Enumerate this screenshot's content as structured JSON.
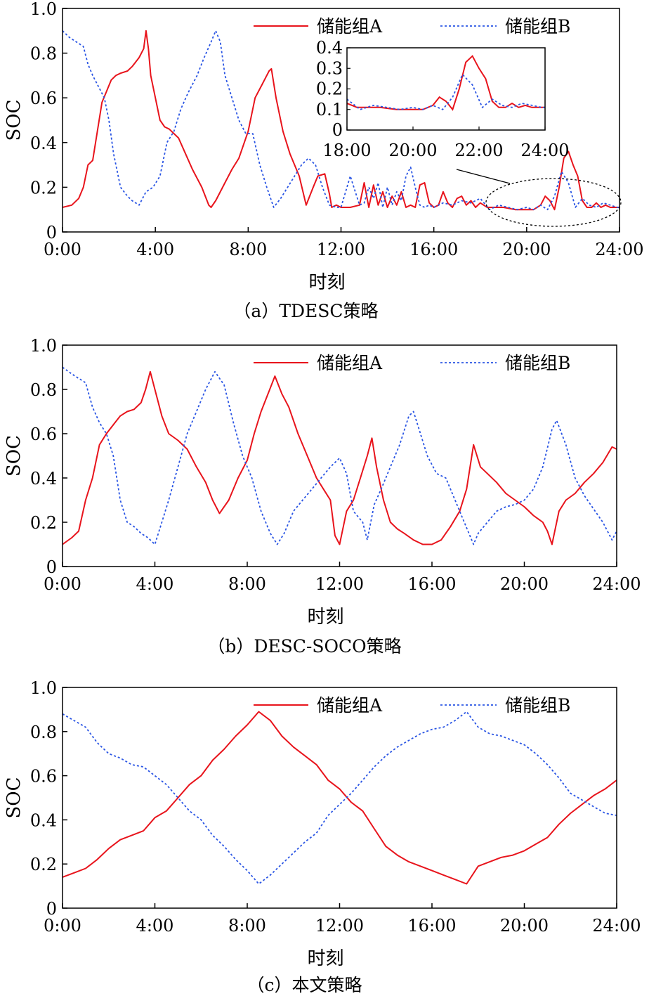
{
  "chart_data": [
    {
      "type": "line",
      "title": "（a）TDESC策略",
      "xlabel": "时刻",
      "ylabel": "SOC",
      "x_ticks": [
        "0:00",
        "4:00",
        "8:00",
        "12:00",
        "16:00",
        "20:00",
        "24:00"
      ],
      "y_ticks": [
        "0",
        "0.2",
        "0.4",
        "0.6",
        "0.8",
        "1.0"
      ],
      "xlim": [
        0,
        24
      ],
      "ylim": [
        0,
        1.0
      ],
      "legend_position": "top",
      "series": [
        {
          "name": "储能组A",
          "color": "#e8141c",
          "style": "solid",
          "x": [
            0,
            0.4,
            0.7,
            0.9,
            1.1,
            1.3,
            1.5,
            1.7,
            1.9,
            2.1,
            2.3,
            2.5,
            2.8,
            3.0,
            3.3,
            3.5,
            3.6,
            3.7,
            3.8,
            4.0,
            4.2,
            4.4,
            4.6,
            5.0,
            5.3,
            5.6,
            6.0,
            6.3,
            6.4,
            6.6,
            7.0,
            7.3,
            7.6,
            8.0,
            8.3,
            8.6,
            8.9,
            9.0,
            9.2,
            9.5,
            9.8,
            10.2,
            10.5,
            10.8,
            11.0,
            11.3,
            11.5,
            11.6,
            11.8,
            12.0,
            12.4,
            12.8,
            13.0,
            13.2,
            13.4,
            13.6,
            13.8,
            14.0,
            14.2,
            14.4,
            14.6,
            14.8,
            15.0,
            15.2,
            15.4,
            15.6,
            15.8,
            16.0,
            16.2,
            16.4,
            16.6,
            16.8,
            17.0,
            17.2,
            17.4,
            17.6,
            17.8,
            18.0,
            18.3,
            18.6,
            19.0,
            19.5,
            20.0,
            20.3,
            20.6,
            20.8,
            21.0,
            21.2,
            21.4,
            21.6,
            21.8,
            22.0,
            22.2,
            22.4,
            22.6,
            22.8,
            23.0,
            23.2,
            23.4,
            23.6,
            23.8,
            24.0
          ],
          "y": [
            0.11,
            0.12,
            0.15,
            0.2,
            0.3,
            0.32,
            0.45,
            0.58,
            0.63,
            0.68,
            0.7,
            0.71,
            0.72,
            0.74,
            0.78,
            0.82,
            0.9,
            0.82,
            0.7,
            0.6,
            0.5,
            0.47,
            0.46,
            0.42,
            0.35,
            0.28,
            0.2,
            0.12,
            0.11,
            0.14,
            0.22,
            0.28,
            0.33,
            0.45,
            0.6,
            0.66,
            0.72,
            0.73,
            0.6,
            0.45,
            0.35,
            0.25,
            0.12,
            0.2,
            0.25,
            0.26,
            0.17,
            0.11,
            0.12,
            0.11,
            0.11,
            0.12,
            0.22,
            0.11,
            0.21,
            0.12,
            0.18,
            0.11,
            0.16,
            0.12,
            0.18,
            0.11,
            0.12,
            0.11,
            0.21,
            0.22,
            0.13,
            0.11,
            0.12,
            0.18,
            0.13,
            0.11,
            0.15,
            0.16,
            0.12,
            0.14,
            0.11,
            0.13,
            0.11,
            0.11,
            0.11,
            0.1,
            0.1,
            0.1,
            0.12,
            0.16,
            0.14,
            0.1,
            0.2,
            0.33,
            0.36,
            0.3,
            0.25,
            0.14,
            0.11,
            0.11,
            0.13,
            0.11,
            0.12,
            0.11,
            0.11,
            0.11
          ]
        },
        {
          "name": "储能组B",
          "color": "#2a55e4",
          "style": "dotted",
          "x": [
            0,
            0.3,
            0.6,
            0.9,
            1.1,
            1.3,
            1.5,
            1.8,
            2.0,
            2.2,
            2.5,
            2.8,
            3.0,
            3.3,
            3.6,
            3.9,
            4.2,
            4.5,
            4.8,
            5.1,
            5.4,
            5.8,
            6.1,
            6.4,
            6.6,
            6.8,
            7.0,
            7.3,
            7.6,
            7.9,
            8.2,
            8.5,
            8.8,
            9.1,
            9.4,
            9.7,
            10.0,
            10.3,
            10.6,
            10.9,
            11.2,
            11.5,
            11.8,
            12.0,
            12.4,
            12.8,
            13.0,
            13.2,
            13.4,
            13.6,
            13.8,
            14.0,
            14.2,
            14.4,
            14.6,
            14.8,
            15.0,
            15.2,
            15.4,
            15.6,
            15.8,
            16.0,
            16.4,
            16.8,
            17.2,
            17.6,
            18.0,
            18.4,
            18.8,
            19.2,
            19.6,
            20.0,
            20.3,
            20.6,
            20.9,
            21.2,
            21.5,
            21.8,
            22.1,
            22.4,
            22.7,
            23.0,
            23.3,
            23.6,
            23.9,
            24.0
          ],
          "y": [
            0.9,
            0.87,
            0.85,
            0.83,
            0.75,
            0.7,
            0.66,
            0.6,
            0.5,
            0.35,
            0.2,
            0.16,
            0.14,
            0.12,
            0.18,
            0.2,
            0.25,
            0.4,
            0.45,
            0.55,
            0.62,
            0.7,
            0.78,
            0.85,
            0.9,
            0.85,
            0.7,
            0.6,
            0.5,
            0.44,
            0.44,
            0.3,
            0.2,
            0.11,
            0.15,
            0.2,
            0.25,
            0.3,
            0.33,
            0.3,
            0.2,
            0.12,
            0.11,
            0.11,
            0.25,
            0.12,
            0.13,
            0.2,
            0.15,
            0.22,
            0.11,
            0.2,
            0.12,
            0.18,
            0.14,
            0.25,
            0.29,
            0.2,
            0.12,
            0.11,
            0.12,
            0.11,
            0.13,
            0.12,
            0.14,
            0.13,
            0.15,
            0.1,
            0.12,
            0.11,
            0.1,
            0.11,
            0.1,
            0.12,
            0.1,
            0.16,
            0.27,
            0.22,
            0.11,
            0.15,
            0.12,
            0.11,
            0.13,
            0.12,
            0.11,
            0.11
          ]
        }
      ],
      "inset": {
        "x_ticks": [
          "18:00",
          "20:00",
          "22:00",
          "24:00"
        ],
        "y_ticks": [
          "0",
          "0.1",
          "0.2",
          "0.3",
          "0.4"
        ],
        "xlim": [
          18,
          24
        ],
        "ylim": [
          0,
          0.4
        ],
        "annotation": "dashed ellipse around 18:00–24:00 of main plot with leader line to inset"
      }
    },
    {
      "type": "line",
      "title": "（b）DESC-SOCO策略",
      "xlabel": "时刻",
      "ylabel": "SOC",
      "x_ticks": [
        "0:00",
        "4:00",
        "8:00",
        "12:00",
        "16:00",
        "20:00",
        "24:00"
      ],
      "y_ticks": [
        "0",
        "0.2",
        "0.4",
        "0.6",
        "0.8",
        "1.0"
      ],
      "xlim": [
        0,
        24
      ],
      "ylim": [
        0,
        1.0
      ],
      "legend_position": "top",
      "series": [
        {
          "name": "储能组A",
          "color": "#e8141c",
          "style": "solid",
          "x": [
            0,
            0.4,
            0.7,
            1.0,
            1.3,
            1.6,
            1.9,
            2.2,
            2.5,
            2.8,
            3.1,
            3.4,
            3.6,
            3.8,
            4.0,
            4.3,
            4.6,
            5.0,
            5.4,
            5.8,
            6.2,
            6.5,
            6.8,
            7.2,
            7.6,
            8.0,
            8.3,
            8.6,
            8.9,
            9.2,
            9.5,
            9.8,
            10.2,
            10.6,
            11.0,
            11.3,
            11.6,
            11.8,
            12.0,
            12.3,
            12.6,
            12.9,
            13.2,
            13.4,
            13.6,
            13.9,
            14.2,
            14.5,
            14.8,
            15.2,
            15.6,
            16.0,
            16.4,
            16.8,
            17.2,
            17.5,
            17.8,
            18.1,
            18.4,
            18.8,
            19.2,
            19.6,
            20.0,
            20.4,
            20.8,
            21.0,
            21.2,
            21.5,
            21.8,
            22.2,
            22.6,
            23.0,
            23.4,
            23.8,
            24.0
          ],
          "y": [
            0.1,
            0.13,
            0.16,
            0.3,
            0.4,
            0.55,
            0.6,
            0.64,
            0.68,
            0.7,
            0.71,
            0.74,
            0.8,
            0.88,
            0.8,
            0.68,
            0.6,
            0.57,
            0.53,
            0.45,
            0.38,
            0.3,
            0.24,
            0.3,
            0.4,
            0.48,
            0.6,
            0.7,
            0.78,
            0.86,
            0.78,
            0.72,
            0.6,
            0.5,
            0.4,
            0.35,
            0.3,
            0.14,
            0.1,
            0.25,
            0.3,
            0.4,
            0.5,
            0.58,
            0.45,
            0.3,
            0.2,
            0.17,
            0.15,
            0.12,
            0.1,
            0.1,
            0.12,
            0.18,
            0.25,
            0.35,
            0.55,
            0.45,
            0.42,
            0.38,
            0.33,
            0.3,
            0.27,
            0.23,
            0.2,
            0.16,
            0.1,
            0.25,
            0.3,
            0.33,
            0.38,
            0.42,
            0.47,
            0.54,
            0.53
          ]
        },
        {
          "name": "储能组B",
          "color": "#2a55e4",
          "style": "dotted",
          "x": [
            0,
            0.4,
            0.7,
            1.0,
            1.3,
            1.6,
            1.9,
            2.2,
            2.5,
            2.8,
            3.1,
            3.4,
            3.7,
            4.0,
            4.3,
            4.6,
            5.0,
            5.4,
            5.8,
            6.2,
            6.6,
            7.0,
            7.4,
            7.8,
            8.2,
            8.6,
            9.0,
            9.3,
            9.6,
            10.0,
            10.4,
            10.8,
            11.2,
            11.6,
            12.0,
            12.3,
            12.6,
            13.0,
            13.2,
            13.5,
            13.8,
            14.2,
            14.6,
            15.0,
            15.2,
            15.5,
            15.8,
            16.2,
            16.6,
            17.0,
            17.4,
            17.8,
            18.0,
            18.4,
            18.8,
            19.2,
            19.6,
            20.0,
            20.4,
            20.8,
            21.2,
            21.4,
            21.8,
            22.2,
            22.6,
            23.0,
            23.4,
            23.8,
            24.0
          ],
          "y": [
            0.9,
            0.87,
            0.85,
            0.83,
            0.72,
            0.65,
            0.6,
            0.5,
            0.3,
            0.2,
            0.18,
            0.15,
            0.13,
            0.1,
            0.2,
            0.3,
            0.45,
            0.6,
            0.7,
            0.8,
            0.88,
            0.82,
            0.65,
            0.5,
            0.4,
            0.25,
            0.15,
            0.1,
            0.15,
            0.25,
            0.3,
            0.35,
            0.4,
            0.45,
            0.49,
            0.42,
            0.25,
            0.2,
            0.12,
            0.28,
            0.35,
            0.45,
            0.55,
            0.68,
            0.7,
            0.6,
            0.5,
            0.42,
            0.4,
            0.3,
            0.2,
            0.1,
            0.15,
            0.2,
            0.25,
            0.27,
            0.28,
            0.3,
            0.35,
            0.45,
            0.62,
            0.66,
            0.55,
            0.4,
            0.32,
            0.26,
            0.2,
            0.12,
            0.16
          ]
        }
      ]
    },
    {
      "type": "line",
      "title": "（c）本文策略",
      "xlabel": "时刻",
      "ylabel": "SOC",
      "x_ticks": [
        "0:00",
        "4:00",
        "8:00",
        "12:00",
        "16:00",
        "20:00",
        "24:00"
      ],
      "y_ticks": [
        "0",
        "0.2",
        "0.4",
        "0.6",
        "0.8",
        "1.0"
      ],
      "xlim": [
        0,
        24
      ],
      "ylim": [
        0,
        1.0
      ],
      "legend_position": "top",
      "series": [
        {
          "name": "储能组A",
          "color": "#e8141c",
          "style": "solid",
          "x": [
            0,
            0.5,
            1.0,
            1.5,
            2.0,
            2.5,
            3.0,
            3.5,
            4.0,
            4.5,
            5.0,
            5.5,
            6.0,
            6.5,
            7.0,
            7.5,
            8.0,
            8.5,
            9.0,
            9.5,
            10.0,
            10.5,
            11.0,
            11.5,
            12.0,
            12.5,
            13.0,
            13.5,
            14.0,
            14.5,
            15.0,
            15.5,
            16.0,
            16.5,
            17.0,
            17.5,
            18.0,
            18.5,
            19.0,
            19.5,
            20.0,
            20.5,
            21.0,
            21.5,
            22.0,
            22.5,
            23.0,
            23.5,
            24.0
          ],
          "y": [
            0.14,
            0.16,
            0.18,
            0.22,
            0.27,
            0.31,
            0.33,
            0.35,
            0.41,
            0.44,
            0.5,
            0.56,
            0.6,
            0.67,
            0.72,
            0.78,
            0.83,
            0.89,
            0.85,
            0.78,
            0.73,
            0.69,
            0.65,
            0.58,
            0.54,
            0.48,
            0.44,
            0.36,
            0.28,
            0.24,
            0.21,
            0.19,
            0.17,
            0.15,
            0.13,
            0.11,
            0.19,
            0.21,
            0.23,
            0.24,
            0.26,
            0.29,
            0.32,
            0.38,
            0.43,
            0.47,
            0.51,
            0.54,
            0.58
          ]
        },
        {
          "name": "储能组B",
          "color": "#2a55e4",
          "style": "dotted",
          "x": [
            0,
            0.5,
            1.0,
            1.5,
            2.0,
            2.5,
            3.0,
            3.5,
            4.0,
            4.5,
            5.0,
            5.5,
            6.0,
            6.5,
            7.0,
            7.5,
            8.0,
            8.5,
            9.0,
            9.5,
            10.0,
            10.5,
            11.0,
            11.5,
            12.0,
            12.5,
            13.0,
            13.5,
            14.0,
            14.5,
            15.0,
            15.5,
            16.0,
            16.5,
            17.0,
            17.5,
            18.0,
            18.5,
            19.0,
            19.5,
            20.0,
            20.5,
            21.0,
            21.5,
            22.0,
            22.5,
            23.0,
            23.5,
            24.0
          ],
          "y": [
            0.88,
            0.85,
            0.82,
            0.75,
            0.7,
            0.68,
            0.65,
            0.64,
            0.6,
            0.56,
            0.5,
            0.44,
            0.4,
            0.33,
            0.28,
            0.22,
            0.17,
            0.11,
            0.15,
            0.2,
            0.25,
            0.3,
            0.34,
            0.42,
            0.47,
            0.52,
            0.58,
            0.64,
            0.69,
            0.73,
            0.76,
            0.79,
            0.81,
            0.82,
            0.85,
            0.89,
            0.82,
            0.79,
            0.78,
            0.76,
            0.74,
            0.7,
            0.65,
            0.59,
            0.52,
            0.49,
            0.46,
            0.43,
            0.42
          ]
        }
      ]
    }
  ]
}
